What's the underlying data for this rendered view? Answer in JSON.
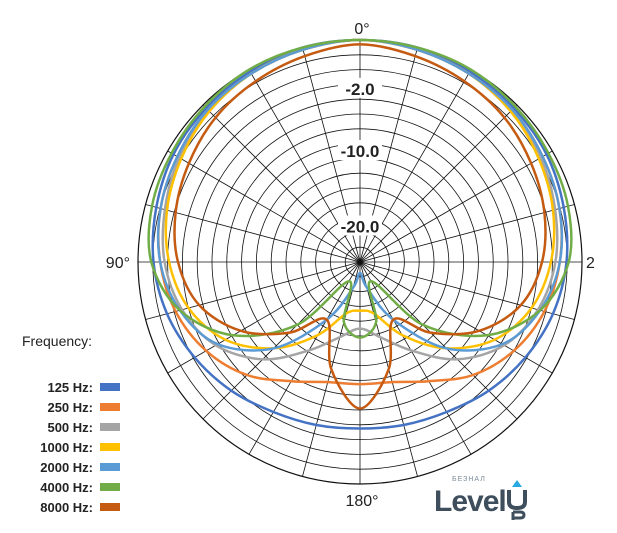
{
  "chart_data": {
    "type": "polar-line",
    "title": "",
    "angle_labels": [
      {
        "angle": 0,
        "text": "0°"
      },
      {
        "angle": 90,
        "text": "90°"
      },
      {
        "angle": 180,
        "text": "180°"
      },
      {
        "angle": 270,
        "text": "2"
      }
    ],
    "radial_labels": [
      "-2.0",
      "-10.0",
      "-20.0"
    ],
    "legend_title": "Frequency:",
    "legend_placement": "bottom-left",
    "angles_deg": [
      0,
      15,
      30,
      45,
      60,
      75,
      90,
      105,
      120,
      135,
      150,
      165,
      180
    ],
    "series": [
      {
        "name": "125 Hz:",
        "color": "#4472c4",
        "r": [
          1.0,
          1.0,
          0.99,
          0.98,
          0.97,
          0.95,
          0.93,
          0.9,
          0.86,
          0.82,
          0.78,
          0.76,
          0.75
        ]
      },
      {
        "name": "250 Hz:",
        "color": "#ed7d31",
        "r": [
          1.0,
          0.99,
          0.98,
          0.97,
          0.95,
          0.93,
          0.9,
          0.86,
          0.8,
          0.72,
          0.62,
          0.56,
          0.55
        ]
      },
      {
        "name": "500 Hz:",
        "color": "#a5a5a5",
        "r": [
          1.0,
          0.99,
          0.98,
          0.96,
          0.94,
          0.91,
          0.88,
          0.83,
          0.75,
          0.62,
          0.46,
          0.35,
          0.3
        ]
      },
      {
        "name": "1000 Hz:",
        "color": "#ffc000",
        "r": [
          1.0,
          0.99,
          0.98,
          0.96,
          0.93,
          0.9,
          0.86,
          0.8,
          0.7,
          0.55,
          0.38,
          0.24,
          0.22
        ]
      },
      {
        "name": "2000 Hz:",
        "color": "#5b9bd5",
        "r": [
          1.0,
          0.99,
          0.98,
          0.97,
          0.95,
          0.93,
          0.9,
          0.84,
          0.74,
          0.55,
          0.3,
          0.12,
          0.05
        ]
      },
      {
        "name": "4000 Hz:",
        "color": "#70ad47",
        "r": [
          1.0,
          1.0,
          1.0,
          0.99,
          0.98,
          0.97,
          0.94,
          0.84,
          0.66,
          0.4,
          0.1,
          0.28,
          0.34
        ]
      },
      {
        "name": "8000 Hz:",
        "color": "#c55a11",
        "r": [
          0.98,
          0.96,
          0.94,
          0.92,
          0.89,
          0.86,
          0.82,
          0.75,
          0.62,
          0.45,
          0.3,
          0.5,
          0.66
        ]
      }
    ]
  },
  "logo": {
    "main": "Level",
    "sub": "БЕЗНАЛ"
  }
}
